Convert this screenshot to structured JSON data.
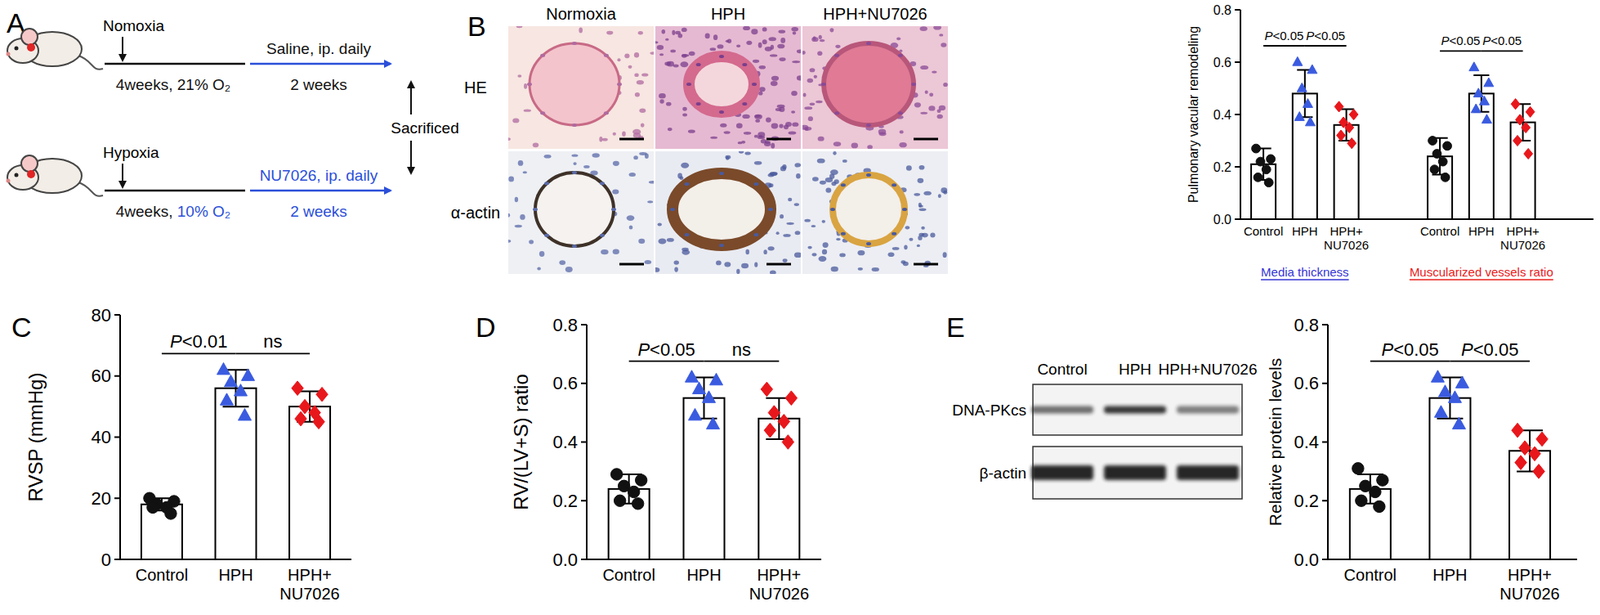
{
  "panel_labels": [
    "A",
    "B",
    "C",
    "D",
    "E"
  ],
  "schematic": {
    "rows": [
      {
        "condition": "Nomoxia",
        "exposure": "4weeks, 21% O₂",
        "treatment": "Saline, ip. daily",
        "duration": "2 weeks"
      },
      {
        "condition": "Hypoxia",
        "exposure": "4weeks, 10% O₂",
        "treatment": "NU7026, ip. daily",
        "duration": "2 weeks"
      }
    ],
    "endpoint": "Sacrificed"
  },
  "histology": {
    "columns": [
      "Normoxia",
      "HPH",
      "HPH+NU7026"
    ],
    "rows": [
      "HE",
      "α-actin"
    ]
  },
  "blot": {
    "lanes": [
      "Control",
      "HPH",
      "HPH+NU7026"
    ],
    "proteins": [
      "DNA-PKcs",
      "β-actin"
    ]
  },
  "chart_data": [
    {
      "type": "bar",
      "y_label": "Pulmonary vacular remodeling",
      "categories": [
        "Control",
        "HPH",
        "HPH+NU7026"
      ],
      "ylim": [
        0,
        0.8
      ],
      "yticks": [
        {
          "value": 0,
          "label": "0.0"
        },
        {
          "value": 0.2,
          "label": "0.2"
        },
        {
          "value": 0.4,
          "label": "0.4"
        },
        {
          "value": 0.6,
          "label": "0.6"
        },
        {
          "value": 0.8,
          "label": "0.8"
        }
      ],
      "colors": [
        "#111111",
        "#3a5be0",
        "#e8171b"
      ],
      "series": [
        {
          "name": "Media thickness",
          "color": "#3535d4",
          "values": [
            0.21,
            0.48,
            0.36
          ],
          "errors": [
            0.06,
            0.09,
            0.06
          ],
          "points": [
            [
              0.27,
              0.23,
              0.22,
              0.19,
              0.16,
              0.14
            ],
            [
              0.6,
              0.57,
              0.5,
              0.44,
              0.39,
              0.37
            ],
            [
              0.43,
              0.4,
              0.37,
              0.35,
              0.32,
              0.29
            ]
          ]
        },
        {
          "name": "Muscularized vessels ratio",
          "color": "#e8201b",
          "values": [
            0.24,
            0.48,
            0.37
          ],
          "errors": [
            0.07,
            0.07,
            0.07
          ],
          "points": [
            [
              0.3,
              0.28,
              0.25,
              0.22,
              0.19,
              0.16
            ],
            [
              0.58,
              0.52,
              0.48,
              0.45,
              0.42,
              0.38
            ],
            [
              0.44,
              0.41,
              0.38,
              0.35,
              0.3,
              0.25
            ]
          ]
        }
      ],
      "annotations": [
        {
          "text": "P<0.05",
          "series": 0,
          "from": 0,
          "to": 1
        },
        {
          "text": "P<0.05",
          "series": 0,
          "from": 1,
          "to": 2
        },
        {
          "text": "P<0.05",
          "series": 1,
          "from": 0,
          "to": 1
        },
        {
          "text": "P<0.05",
          "series": 1,
          "from": 1,
          "to": 2
        }
      ]
    },
    {
      "type": "bar",
      "y_label": "RVSP (mmHg)",
      "categories": [
        "Control",
        "HPH",
        "HPH+NU7026"
      ],
      "ylim": [
        0,
        80
      ],
      "yticks": [
        0,
        20,
        40,
        60,
        80
      ],
      "colors": [
        "#111111",
        "#3a5be0",
        "#e8171b"
      ],
      "series": [
        {
          "name": "RVSP",
          "values": [
            18,
            56,
            50
          ],
          "errors": [
            2,
            6,
            5
          ],
          "points": [
            [
              20,
              19,
              18,
              17,
              17,
              15
            ],
            [
              62,
              60,
              58,
              55,
              52,
              47
            ],
            [
              56,
              54,
              50,
              48,
              46,
              45
            ]
          ]
        }
      ],
      "annotations": [
        {
          "text": "P<0.01",
          "series": 0,
          "from": 0,
          "to": 1
        },
        {
          "text": "ns",
          "series": 0,
          "from": 1,
          "to": 2
        }
      ]
    },
    {
      "type": "bar",
      "y_label": "RV/(LV+S) ratio",
      "categories": [
        "Control",
        "HPH",
        "HPH+NU7026"
      ],
      "ylim": [
        0,
        0.8
      ],
      "yticks": [
        {
          "value": 0,
          "label": "0.0"
        },
        {
          "value": 0.2,
          "label": "0.2"
        },
        {
          "value": 0.4,
          "label": "0.4"
        },
        {
          "value": 0.6,
          "label": "0.6"
        },
        {
          "value": 0.8,
          "label": "0.8"
        }
      ],
      "colors": [
        "#111111",
        "#3a5be0",
        "#e8171b"
      ],
      "series": [
        {
          "name": "RV/(LV+S)",
          "values": [
            0.24,
            0.55,
            0.48
          ],
          "errors": [
            0.05,
            0.07,
            0.07
          ],
          "points": [
            [
              0.29,
              0.27,
              0.25,
              0.23,
              0.2,
              0.19
            ],
            [
              0.62,
              0.61,
              0.58,
              0.55,
              0.49,
              0.46
            ],
            [
              0.58,
              0.55,
              0.5,
              0.47,
              0.44,
              0.4
            ]
          ]
        }
      ],
      "annotations": [
        {
          "text": "P<0.05",
          "series": 0,
          "from": 0,
          "to": 1
        },
        {
          "text": "ns",
          "series": 0,
          "from": 1,
          "to": 2
        }
      ]
    },
    {
      "type": "bar",
      "y_label": "Relative protein levels",
      "categories": [
        "Control",
        "HPH",
        "HPH+NU7026"
      ],
      "ylim": [
        0,
        0.8
      ],
      "yticks": [
        {
          "value": 0,
          "label": "0.0"
        },
        {
          "value": 0.2,
          "label": "0.2"
        },
        {
          "value": 0.4,
          "label": "0.4"
        },
        {
          "value": 0.6,
          "label": "0.6"
        },
        {
          "value": 0.8,
          "label": "0.8"
        }
      ],
      "colors": [
        "#111111",
        "#3a5be0",
        "#e8171b"
      ],
      "series": [
        {
          "name": "DNA-PKcs",
          "values": [
            0.24,
            0.55,
            0.37
          ],
          "errors": [
            0.05,
            0.07,
            0.07
          ],
          "points": [
            [
              0.31,
              0.27,
              0.25,
              0.23,
              0.2,
              0.18
            ],
            [
              0.62,
              0.6,
              0.57,
              0.55,
              0.5,
              0.46
            ],
            [
              0.44,
              0.41,
              0.38,
              0.36,
              0.33,
              0.3
            ]
          ]
        }
      ],
      "annotations": [
        {
          "text": "P<0.05",
          "series": 0,
          "from": 0,
          "to": 1
        },
        {
          "text": "P<0.05",
          "series": 0,
          "from": 1,
          "to": 2
        }
      ]
    }
  ]
}
